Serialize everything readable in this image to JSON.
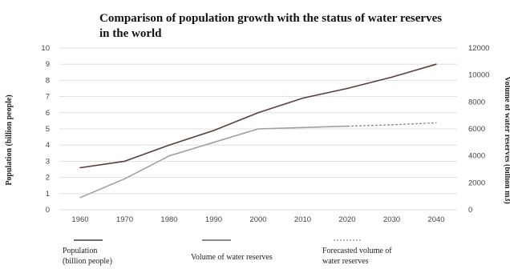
{
  "chart_data": {
    "type": "line",
    "title_line1": "Comparison of population growth with the status of water reserves",
    "title_line2": "in the world",
    "x": [
      1960,
      1970,
      1980,
      1990,
      2000,
      2010,
      2020,
      2030,
      2040
    ],
    "x_tick_labels": [
      "1960",
      "1970",
      "1980",
      "1990",
      "2000",
      "2010",
      "2020",
      "2030",
      "2040"
    ],
    "y_left": {
      "label": "Population (billion people)",
      "ylim": [
        0,
        10
      ],
      "ticks": [
        "0",
        "1",
        "2",
        "3",
        "4",
        "5",
        "6",
        "7",
        "8",
        "9",
        "10"
      ]
    },
    "y_right": {
      "label": "Volume of water reserves (billion m3)",
      "ylim": [
        0,
        12000
      ],
      "ticks": [
        "0",
        "2000",
        "4000",
        "6000",
        "8000",
        "10000",
        "12000"
      ]
    },
    "grid": true,
    "series": [
      {
        "name": "Population (billion people)",
        "axis": "left",
        "color": "#5a3e3e",
        "x": [
          1960,
          1970,
          1980,
          1990,
          2000,
          2010,
          2020,
          2030,
          2040
        ],
        "values": [
          2.6,
          3.0,
          4.0,
          4.9,
          6.0,
          6.9,
          7.5,
          8.2,
          9.0
        ]
      },
      {
        "name": "Volume of water reserves",
        "axis": "right",
        "color": "#a0a0a0",
        "x": [
          1960,
          1970,
          1980,
          1990,
          2000,
          2010,
          2020
        ],
        "values": [
          900,
          2300,
          4000,
          5000,
          6000,
          6100,
          6200
        ]
      },
      {
        "name": "Forecasted volume of water reserves",
        "axis": "right",
        "color": "#8c8c8c",
        "dashed": true,
        "x": [
          2020,
          2030,
          2040
        ],
        "values": [
          6200,
          6300,
          6450
        ]
      }
    ],
    "legend": {
      "placement": "bottom",
      "items": [
        {
          "line1": "Population",
          "line2": "(billion people)",
          "color": "#1a1a1a",
          "dashed": false
        },
        {
          "line1": "Volume of water reserves",
          "line2": "",
          "color": "#5a3e3e",
          "dashed": false
        },
        {
          "line1": "Forecasted volume of",
          "line2": "water reserves",
          "color": "#8c8c8c",
          "dashed": true
        }
      ]
    }
  }
}
